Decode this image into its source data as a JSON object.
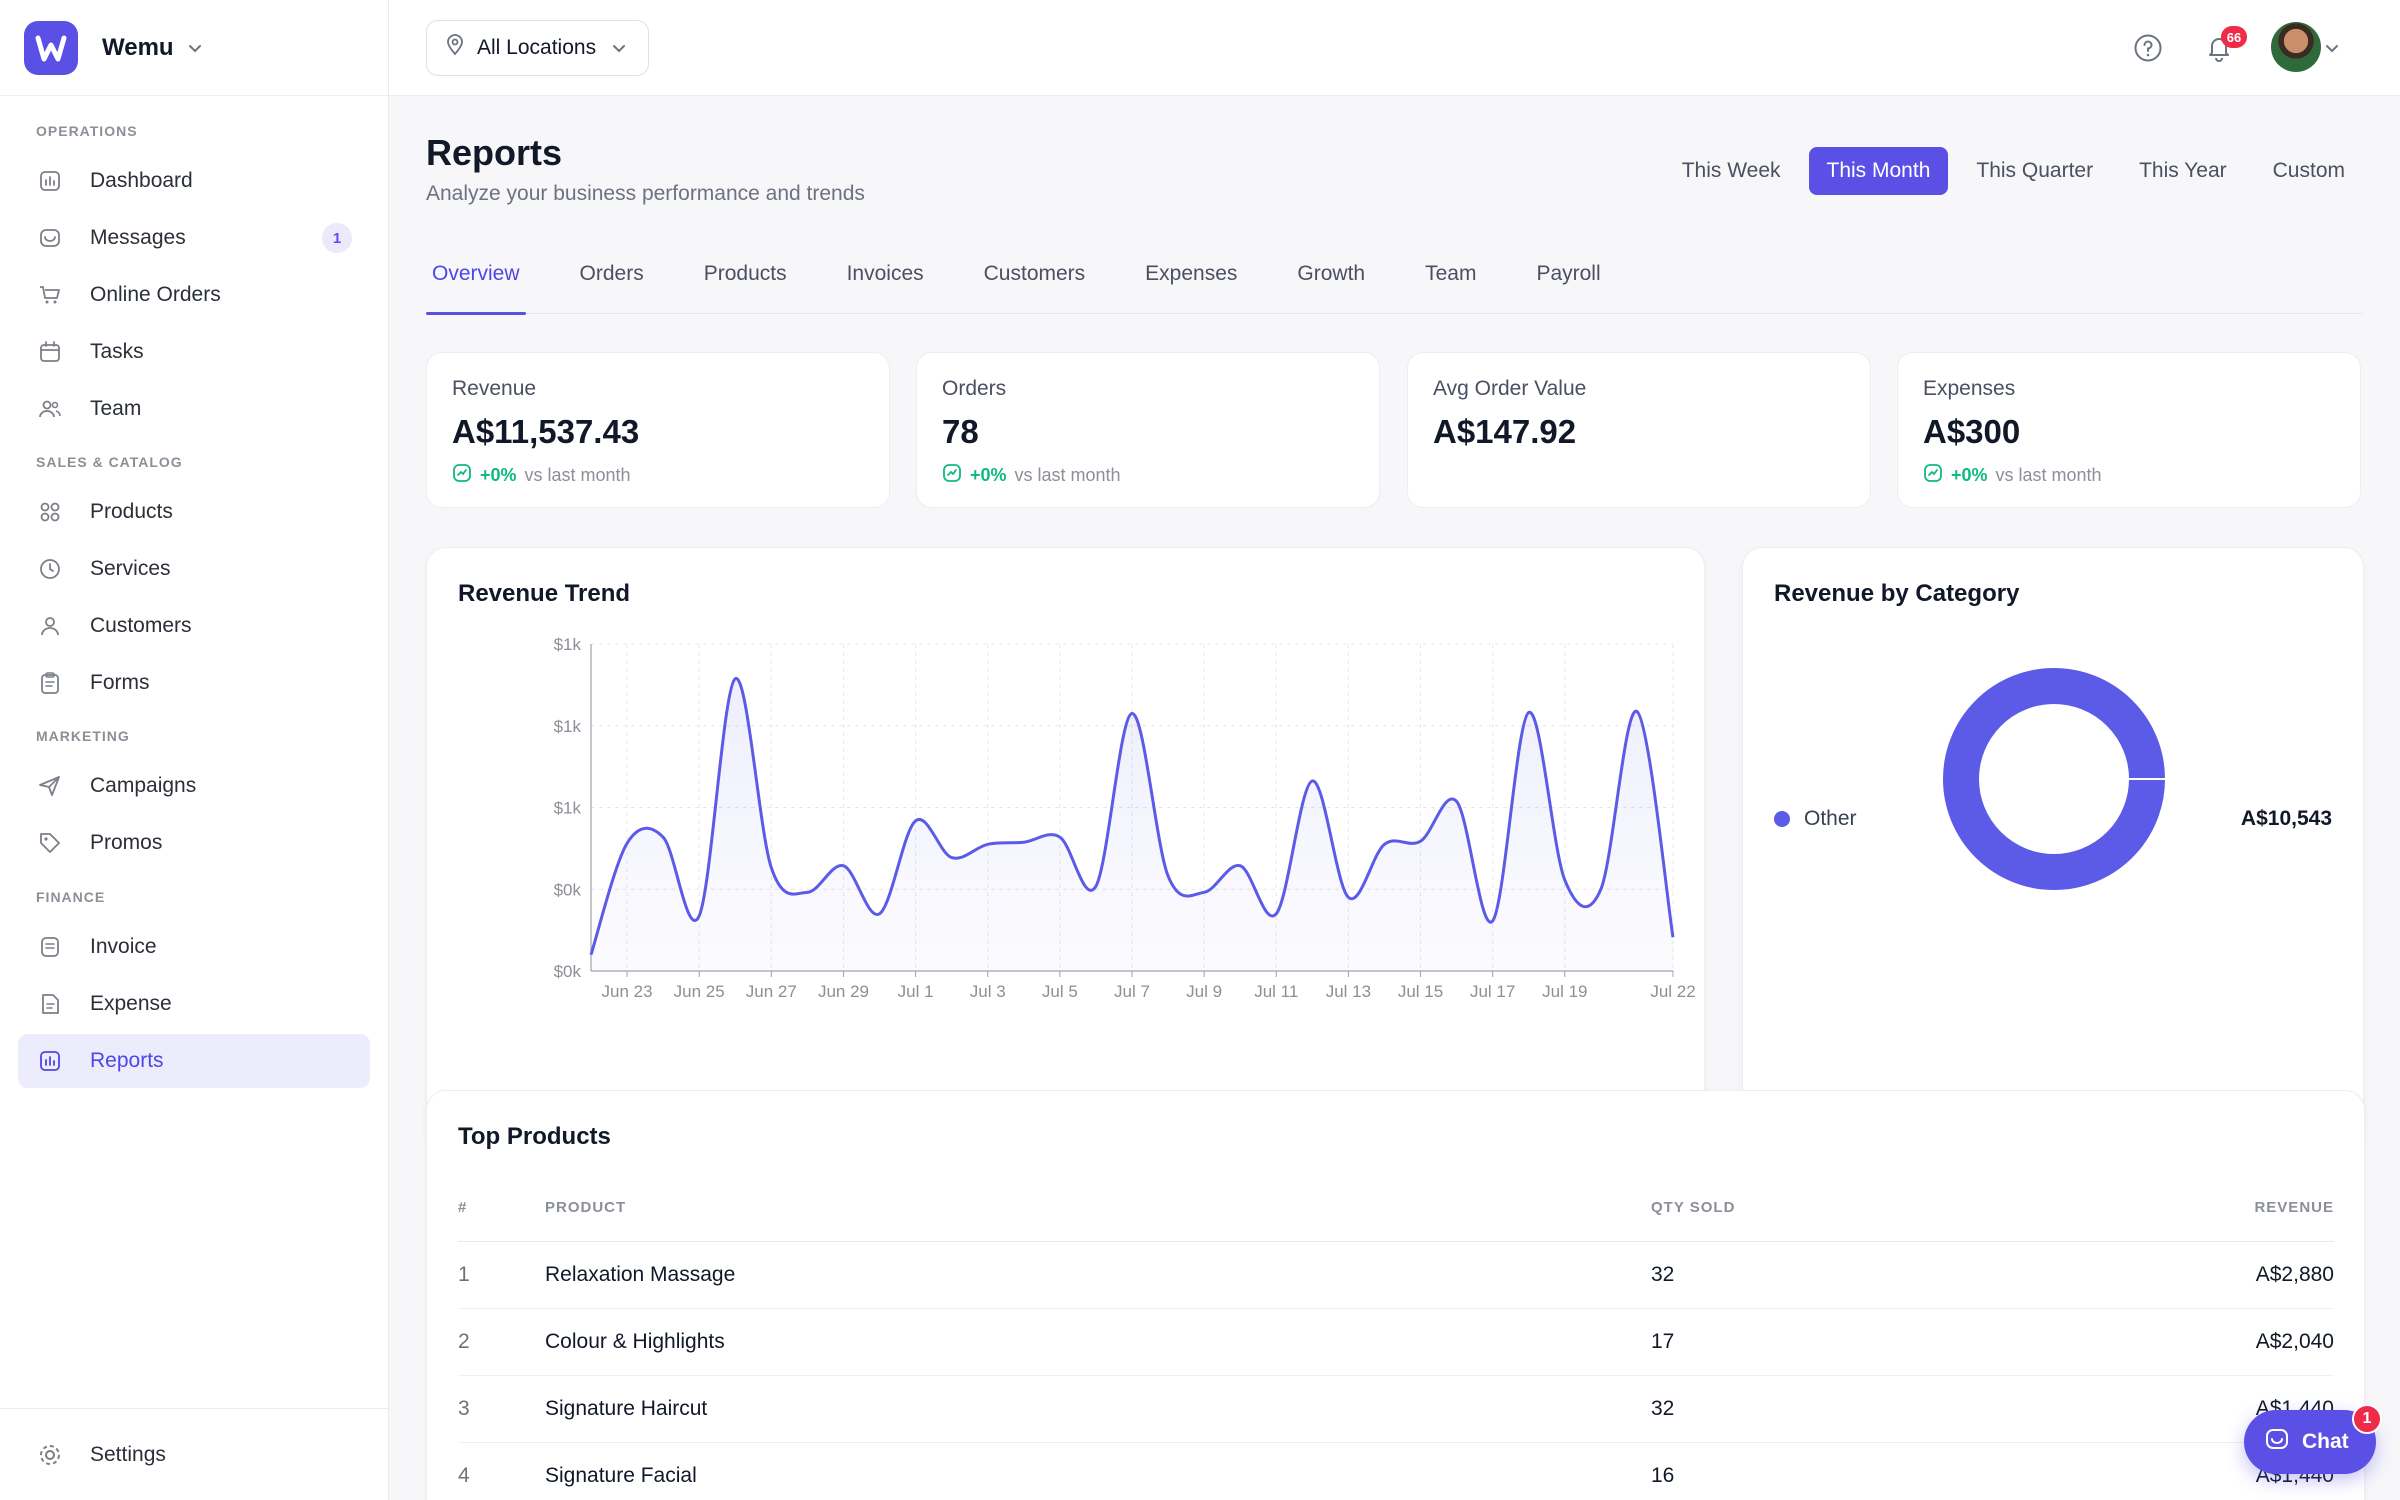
{
  "brand": {
    "name": "Wemu",
    "logo_letter": "W",
    "accent": "#5b50e6"
  },
  "sidebar": {
    "sections": [
      {
        "title": "OPERATIONS",
        "items": [
          {
            "label": "Dashboard",
            "icon": "chart-icon"
          },
          {
            "label": "Messages",
            "icon": "inbox-icon",
            "badge": "1"
          },
          {
            "label": "Online Orders",
            "icon": "cart-icon"
          },
          {
            "label": "Tasks",
            "icon": "calendar-icon"
          },
          {
            "label": "Team",
            "icon": "users-icon"
          }
        ]
      },
      {
        "title": "SALES & CATALOG",
        "items": [
          {
            "label": "Products",
            "icon": "grid-icon"
          },
          {
            "label": "Services",
            "icon": "clock-icon"
          },
          {
            "label": "Customers",
            "icon": "user-icon"
          },
          {
            "label": "Forms",
            "icon": "clipboard-icon"
          }
        ]
      },
      {
        "title": "MARKETING",
        "items": [
          {
            "label": "Campaigns",
            "icon": "send-icon"
          },
          {
            "label": "Promos",
            "icon": "tag-icon"
          }
        ]
      },
      {
        "title": "FINANCE",
        "items": [
          {
            "label": "Invoice",
            "icon": "receipt-icon"
          },
          {
            "label": "Expense",
            "icon": "document-icon"
          },
          {
            "label": "Reports",
            "icon": "chart-icon",
            "active": true
          }
        ]
      }
    ],
    "settings_label": "Settings"
  },
  "topbar": {
    "location_label": "All Locations",
    "notification_count": "66"
  },
  "page": {
    "title": "Reports",
    "subtitle": "Analyze your business performance and trends",
    "periods": [
      "This Week",
      "This Month",
      "This Quarter",
      "This Year",
      "Custom"
    ],
    "active_period": "This Month",
    "tabs": [
      "Overview",
      "Orders",
      "Products",
      "Invoices",
      "Customers",
      "Expenses",
      "Growth",
      "Team",
      "Payroll"
    ],
    "active_tab": "Overview"
  },
  "stats": [
    {
      "label": "Revenue",
      "value": "A$11,537.43",
      "delta": "+0%",
      "compare": "vs last month"
    },
    {
      "label": "Orders",
      "value": "78",
      "delta": "+0%",
      "compare": "vs last month"
    },
    {
      "label": "Avg Order Value",
      "value": "A$147.92"
    },
    {
      "label": "Expenses",
      "value": "A$300",
      "delta": "+0%",
      "compare": "vs last month"
    }
  ],
  "revenue_trend": {
    "title": "Revenue Trend",
    "chart_data": {
      "type": "area",
      "y_tick_labels": [
        "$0k",
        "$0k",
        "$1k",
        "$1k",
        "$1k"
      ],
      "ylim": [
        0,
        1600
      ],
      "x_tick_labels": [
        "Jun 23",
        "Jun 25",
        "Jun 27",
        "Jun 29",
        "Jul 1",
        "Jul 3",
        "Jul 5",
        "Jul 7",
        "Jul 9",
        "Jul 11",
        "Jul 13",
        "Jul 15",
        "Jul 17",
        "Jul 19",
        "Jul 22"
      ],
      "x": [
        "Jun 22",
        "Jun 23",
        "Jun 24",
        "Jun 25",
        "Jun 26",
        "Jun 27",
        "Jun 28",
        "Jun 29",
        "Jun 30",
        "Jul 1",
        "Jul 2",
        "Jul 3",
        "Jul 4",
        "Jul 5",
        "Jul 6",
        "Jul 7",
        "Jul 8",
        "Jul 9",
        "Jul 10",
        "Jul 11",
        "Jul 12",
        "Jul 13",
        "Jul 14",
        "Jul 15",
        "Jul 16",
        "Jul 17",
        "Jul 18",
        "Jul 19",
        "Jul 20",
        "Jul 21",
        "Jul 22"
      ],
      "values": [
        80,
        625,
        655,
        270,
        1430,
        505,
        385,
        515,
        280,
        735,
        555,
        620,
        630,
        655,
        415,
        1260,
        465,
        385,
        515,
        280,
        930,
        360,
        620,
        635,
        830,
        245,
        1265,
        445,
        400,
        1270,
        165
      ],
      "grid": true,
      "color": "#5b5be8"
    }
  },
  "revenue_by_category": {
    "title": "Revenue by Category",
    "chart_data": {
      "type": "pie",
      "donut": true,
      "labels": [
        "Other"
      ],
      "values": [
        10543
      ],
      "colors": [
        "#5b5be8"
      ]
    },
    "legend": [
      {
        "label": "Other",
        "value": "A$10,543",
        "color": "#5b5be8"
      }
    ]
  },
  "top_products": {
    "title": "Top Products",
    "columns": [
      "#",
      "PRODUCT",
      "QTY SOLD",
      "REVENUE"
    ],
    "rows": [
      [
        "1",
        "Relaxation Massage",
        "32",
        "A$2,880"
      ],
      [
        "2",
        "Colour & Highlights",
        "17",
        "A$2,040"
      ],
      [
        "3",
        "Signature Haircut",
        "32",
        "A$1,440"
      ],
      [
        "4",
        "Signature Facial",
        "16",
        "A$1,440"
      ]
    ]
  },
  "chat": {
    "label": "Chat",
    "badge": "1"
  }
}
